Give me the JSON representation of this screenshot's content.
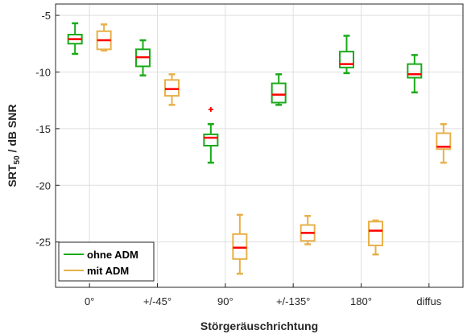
{
  "chart_data": {
    "type": "box",
    "title": "",
    "xlabel": "Störgeräuschrichtung",
    "ylabel": {
      "main": "SRT",
      "sub": "50",
      "rest": " / dB SNR"
    },
    "ylim": [
      -29,
      -4
    ],
    "yticks": [
      -25,
      -20,
      -15,
      -10,
      -5
    ],
    "categories": [
      "0°",
      "+/-45°",
      "90°",
      "+/-135°",
      "180°",
      "diffus"
    ],
    "grid": true,
    "legend_position": "bottom-left",
    "median_color": "#ff0000",
    "series": [
      {
        "name": "ohne ADM",
        "color": "#1aaa1a",
        "boxes": [
          {
            "whisker_low": -8.4,
            "q1": -7.5,
            "median": -7.1,
            "q3": -6.7,
            "whisker_high": -5.7,
            "outliers": []
          },
          {
            "whisker_low": -10.3,
            "q1": -9.5,
            "median": -8.7,
            "q3": -8.0,
            "whisker_high": -7.2,
            "outliers": []
          },
          {
            "whisker_low": -18.0,
            "q1": -16.5,
            "median": -15.8,
            "q3": -15.5,
            "whisker_high": -14.6,
            "outliers": [
              -13.3
            ]
          },
          {
            "whisker_low": -12.9,
            "q1": -12.7,
            "median": -12.0,
            "q3": -11.0,
            "whisker_high": -10.2,
            "outliers": []
          },
          {
            "whisker_low": -10.1,
            "q1": -9.6,
            "median": -9.3,
            "q3": -8.2,
            "whisker_high": -6.8,
            "outliers": []
          },
          {
            "whisker_low": -11.8,
            "q1": -10.5,
            "median": -10.2,
            "q3": -9.3,
            "whisker_high": -8.5,
            "outliers": []
          }
        ]
      },
      {
        "name": "mit ADM",
        "color": "#e8b04a",
        "boxes": [
          {
            "whisker_low": -8.1,
            "q1": -8.0,
            "median": -7.2,
            "q3": -6.4,
            "whisker_high": -5.8,
            "outliers": []
          },
          {
            "whisker_low": -12.9,
            "q1": -12.1,
            "median": -11.5,
            "q3": -10.7,
            "whisker_high": -10.2,
            "outliers": []
          },
          {
            "whisker_low": -27.8,
            "q1": -26.5,
            "median": -25.5,
            "q3": -24.3,
            "whisker_high": -22.6,
            "outliers": []
          },
          {
            "whisker_low": -25.2,
            "q1": -24.9,
            "median": -24.2,
            "q3": -23.5,
            "whisker_high": -22.7,
            "outliers": []
          },
          {
            "whisker_low": -26.1,
            "q1": -25.3,
            "median": -24.0,
            "q3": -23.2,
            "whisker_high": -23.1,
            "outliers": []
          },
          {
            "whisker_low": -18.0,
            "q1": -16.8,
            "median": -16.6,
            "q3": -15.4,
            "whisker_high": -14.6,
            "outliers": []
          }
        ]
      }
    ]
  }
}
